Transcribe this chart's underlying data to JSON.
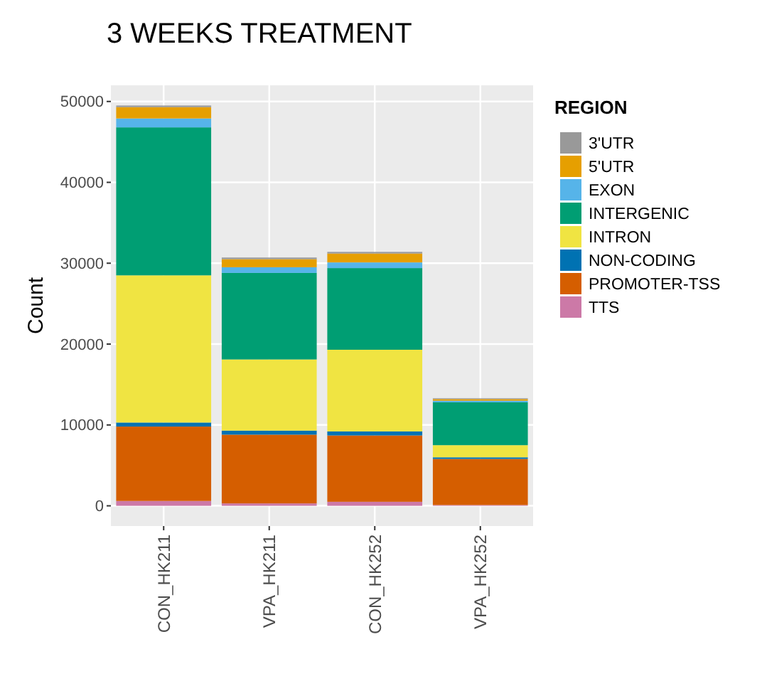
{
  "chart_data": {
    "type": "bar",
    "title": "3 WEEKS TREATMENT",
    "ylabel": "Count",
    "legend_title": "REGION",
    "stacked": true,
    "grid": true,
    "legend": "right",
    "categories": [
      "CON_HK211",
      "VPA_HK211",
      "CON_HK252",
      "VPA_HK252"
    ],
    "ylim": [
      -2500,
      52000
    ],
    "yticks": [
      0,
      10000,
      20000,
      30000,
      40000,
      50000
    ],
    "series": [
      {
        "name": "TTS",
        "color": "#cc79a7",
        "values": [
          600,
          300,
          500,
          100
        ]
      },
      {
        "name": "PROMOTER-TSS",
        "color": "#d55e00",
        "values": [
          9200,
          8500,
          8200,
          5700
        ]
      },
      {
        "name": "NON-CODING",
        "color": "#0072b2",
        "values": [
          500,
          500,
          500,
          200
        ]
      },
      {
        "name": "INTRON",
        "color": "#f0e442",
        "values": [
          18200,
          8800,
          10100,
          1500
        ]
      },
      {
        "name": "INTERGENIC",
        "color": "#009e73",
        "values": [
          18300,
          10700,
          10100,
          5300
        ]
      },
      {
        "name": "EXON",
        "color": "#56b4e9",
        "values": [
          1100,
          700,
          700,
          200
        ]
      },
      {
        "name": "5'UTR",
        "color": "#e69f00",
        "values": [
          1400,
          1000,
          1100,
          200
        ]
      },
      {
        "name": "3'UTR",
        "color": "#999999",
        "values": [
          200,
          200,
          200,
          100
        ]
      }
    ]
  }
}
